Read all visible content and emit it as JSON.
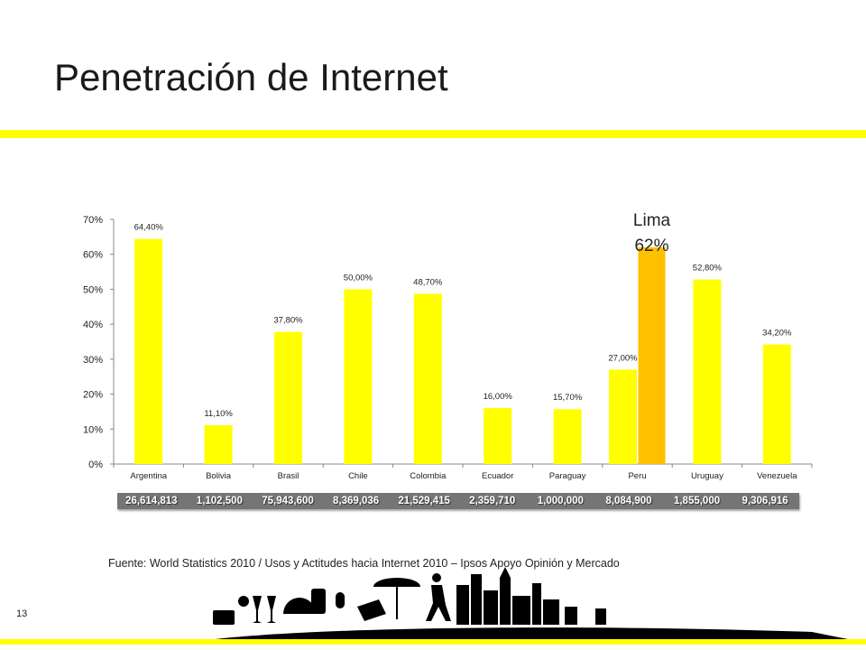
{
  "slide": {
    "title": "Penetración de Internet",
    "source": "Fuente: World Statistics 2010 / Usos y Actitudes hacia Internet 2010 – Ipsos Apoyo Opinión y Mercado",
    "page_number": "13"
  },
  "colors": {
    "accent": "#ffff00",
    "highlight_bar": "#ffc000",
    "strip": "#757575"
  },
  "chart_data": {
    "type": "bar",
    "categories": [
      "Argentina",
      "Bolivia",
      "Brasil",
      "Chile",
      "Colombia",
      "Ecuador",
      "Paraguay",
      "Peru",
      "Uruguay",
      "Venezuela"
    ],
    "values": [
      64.4,
      11.1,
      37.8,
      50.0,
      48.7,
      16.0,
      15.7,
      27.0,
      52.8,
      34.2
    ],
    "data_labels": [
      "64,40%",
      "11,10%",
      "37,80%",
      "50,00%",
      "48,70%",
      "16,00%",
      "15,70%",
      "27,00%",
      "52,80%",
      "34,20%"
    ],
    "y_ticks": [
      "0%",
      "10%",
      "20%",
      "30%",
      "40%",
      "50%",
      "60%",
      "70%"
    ],
    "ylim": [
      0,
      70
    ],
    "grid": false,
    "highlight": {
      "category": "Peru",
      "value": 62,
      "label_line1": "Lima",
      "label_line2": "62%"
    },
    "population_row": [
      "26,614,813",
      "1,102,500",
      "75,943,600",
      "8,369,036",
      "21,529,415",
      "2,359,710",
      "1,000,000",
      "8,084,900",
      "1,855,000",
      "9,306,916"
    ]
  }
}
